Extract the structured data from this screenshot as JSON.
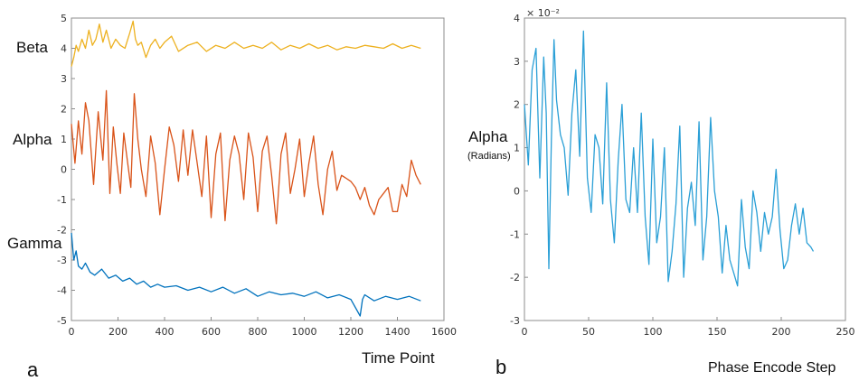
{
  "chart_data": [
    {
      "panel": "a",
      "type": "line",
      "xlabel": "Time Point",
      "xlim": [
        0,
        1600
      ],
      "ylim": [
        -5,
        5
      ],
      "xticks": [
        "0",
        "200",
        "400",
        "600",
        "800",
        "1000",
        "1200",
        "1400",
        "1600"
      ],
      "yticks": [
        "5",
        "4",
        "3",
        "2",
        "1",
        "0",
        "-1",
        "-2",
        "-3",
        "-4",
        "-5"
      ],
      "series_labels": {
        "beta": "Beta",
        "alpha": "Alpha",
        "gamma": "Gamma"
      },
      "series": [
        {
          "name": "Beta",
          "color": "#EDB120",
          "x": [
            0,
            10,
            20,
            30,
            45,
            60,
            75,
            90,
            105,
            120,
            135,
            150,
            170,
            190,
            210,
            230,
            250,
            265,
            275,
            285,
            300,
            320,
            340,
            360,
            380,
            400,
            430,
            460,
            500,
            540,
            580,
            620,
            660,
            700,
            740,
            780,
            820,
            860,
            900,
            940,
            980,
            1020,
            1060,
            1100,
            1140,
            1180,
            1220,
            1260,
            1300,
            1340,
            1380,
            1420,
            1460,
            1500
          ],
          "y": [
            3.4,
            3.7,
            4.1,
            3.9,
            4.3,
            4.0,
            4.6,
            4.1,
            4.3,
            4.8,
            4.2,
            4.6,
            4.0,
            4.3,
            4.1,
            4.0,
            4.5,
            4.9,
            4.3,
            4.1,
            4.2,
            3.7,
            4.1,
            4.3,
            4.0,
            4.2,
            4.4,
            3.9,
            4.1,
            4.2,
            3.9,
            4.1,
            4.0,
            4.2,
            4.0,
            4.1,
            4.0,
            4.2,
            3.95,
            4.1,
            4.0,
            4.15,
            4.0,
            4.1,
            3.95,
            4.05,
            4.0,
            4.1,
            4.05,
            4.0,
            4.15,
            4.0,
            4.1,
            4.0
          ]
        },
        {
          "name": "Alpha",
          "color": "#D95319",
          "x": [
            0,
            15,
            30,
            45,
            60,
            75,
            95,
            115,
            135,
            150,
            165,
            180,
            195,
            210,
            225,
            240,
            255,
            270,
            285,
            300,
            320,
            340,
            360,
            380,
            400,
            420,
            440,
            460,
            480,
            500,
            520,
            540,
            560,
            580,
            600,
            620,
            640,
            660,
            680,
            700,
            720,
            740,
            760,
            780,
            800,
            820,
            840,
            860,
            880,
            900,
            920,
            940,
            960,
            980,
            1000,
            1020,
            1040,
            1060,
            1080,
            1100,
            1120,
            1140,
            1160,
            1180,
            1200,
            1220,
            1240,
            1260,
            1280,
            1300,
            1320,
            1340,
            1360,
            1380,
            1400,
            1420,
            1440,
            1460,
            1480,
            1500
          ],
          "y": [
            1.5,
            0.2,
            1.6,
            0.5,
            2.2,
            1.6,
            -0.5,
            1.9,
            0.3,
            2.6,
            -0.8,
            1.4,
            0.2,
            -0.8,
            1.2,
            0.3,
            -0.6,
            2.5,
            1.0,
            0.0,
            -0.9,
            1.1,
            0.2,
            -1.5,
            0.0,
            1.4,
            0.8,
            -0.4,
            1.3,
            -0.2,
            1.3,
            0.2,
            -0.9,
            1.1,
            -1.6,
            0.5,
            1.2,
            -1.7,
            0.3,
            1.1,
            0.5,
            -1.0,
            1.2,
            0.4,
            -1.4,
            0.6,
            1.1,
            -0.2,
            -1.8,
            0.5,
            1.2,
            -0.8,
            0.0,
            1.0,
            -0.9,
            0.2,
            1.1,
            -0.5,
            -1.5,
            0.0,
            0.6,
            -0.7,
            -0.2,
            -0.3,
            -0.4,
            -0.6,
            -1.0,
            -0.6,
            -1.2,
            -1.5,
            -1.0,
            -0.8,
            -0.6,
            -1.4,
            -1.4,
            -0.5,
            -0.9,
            0.3,
            -0.2,
            -0.5
          ]
        },
        {
          "name": "Gamma",
          "color": "#0072BD",
          "x": [
            0,
            10,
            20,
            30,
            45,
            60,
            80,
            100,
            130,
            160,
            190,
            220,
            250,
            280,
            310,
            340,
            370,
            400,
            450,
            500,
            550,
            600,
            650,
            700,
            750,
            800,
            850,
            900,
            950,
            1000,
            1050,
            1100,
            1150,
            1200,
            1240,
            1250,
            1260,
            1300,
            1350,
            1400,
            1450,
            1500
          ],
          "y": [
            -2.1,
            -3.0,
            -2.7,
            -3.2,
            -3.3,
            -3.1,
            -3.4,
            -3.5,
            -3.3,
            -3.6,
            -3.5,
            -3.7,
            -3.6,
            -3.8,
            -3.7,
            -3.9,
            -3.8,
            -3.9,
            -3.85,
            -4.0,
            -3.9,
            -4.05,
            -3.9,
            -4.1,
            -3.95,
            -4.2,
            -4.05,
            -4.15,
            -4.1,
            -4.2,
            -4.05,
            -4.25,
            -4.15,
            -4.3,
            -4.85,
            -4.3,
            -4.15,
            -4.35,
            -4.2,
            -4.3,
            -4.2,
            -4.35
          ]
        }
      ]
    },
    {
      "panel": "b",
      "type": "line",
      "xlabel": "Phase Encode Step",
      "ylabel": "Alpha",
      "ylabel_sub": "(Radians)",
      "yscale_label": "× 10⁻²",
      "xlim": [
        0,
        250
      ],
      "ylim": [
        -3,
        4
      ],
      "xticks": [
        "0",
        "50",
        "100",
        "150",
        "200",
        "250"
      ],
      "yticks": [
        "4",
        "3",
        "2",
        "1",
        "0",
        "-1",
        "-2",
        "-3"
      ],
      "series": [
        {
          "name": "",
          "color": "#2A9FD6",
          "x": [
            0,
            3,
            6,
            9,
            12,
            15,
            17,
            19,
            21,
            23,
            25,
            28,
            31,
            34,
            37,
            40,
            43,
            46,
            49,
            52,
            55,
            58,
            61,
            64,
            67,
            70,
            73,
            76,
            79,
            82,
            85,
            88,
            91,
            94,
            97,
            100,
            103,
            106,
            109,
            112,
            115,
            118,
            121,
            124,
            127,
            130,
            133,
            136,
            139,
            142,
            145,
            148,
            151,
            154,
            157,
            160,
            163,
            166,
            169,
            172,
            175,
            178,
            181,
            184,
            187,
            190,
            193,
            196,
            199,
            202,
            205,
            208,
            211,
            214,
            217,
            220,
            223,
            225
          ],
          "y": [
            2.0,
            0.6,
            2.8,
            3.3,
            0.3,
            3.1,
            1.8,
            -1.8,
            1.2,
            3.5,
            2.1,
            1.3,
            1.0,
            -0.1,
            1.8,
            2.8,
            0.8,
            3.7,
            0.3,
            -0.5,
            1.3,
            1.0,
            -0.3,
            2.5,
            -0.2,
            -1.2,
            0.7,
            2.0,
            -0.2,
            -0.5,
            1.0,
            -0.5,
            1.8,
            -0.6,
            -1.7,
            1.2,
            -1.2,
            -0.6,
            1.0,
            -2.1,
            -1.4,
            -0.3,
            1.5,
            -2.0,
            -0.4,
            0.2,
            -0.8,
            1.6,
            -1.6,
            -0.6,
            1.7,
            0.0,
            -0.6,
            -1.9,
            -0.8,
            -1.6,
            -1.9,
            -2.2,
            -0.2,
            -1.3,
            -1.8,
            0.0,
            -0.5,
            -1.4,
            -0.5,
            -1.0,
            -0.6,
            0.5,
            -0.9,
            -1.8,
            -1.6,
            -0.8,
            -0.3,
            -1.0,
            -0.4,
            -1.2,
            -1.3,
            -1.4
          ]
        }
      ]
    }
  ]
}
